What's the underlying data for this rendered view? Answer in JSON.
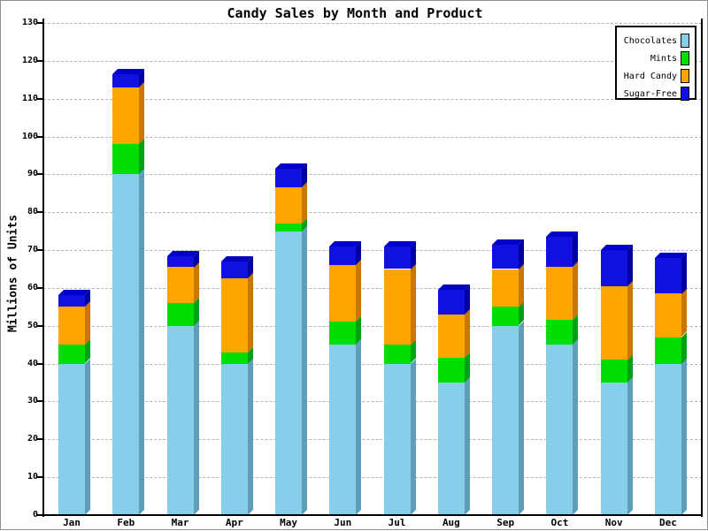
{
  "title": "Candy Sales by Month and Product",
  "y_axis": {
    "label": "Millions of Units"
  },
  "chart_data": {
    "type": "bar",
    "stacked": true,
    "title": "Candy Sales by Month and Product",
    "xlabel": "",
    "ylabel": "Millions of Units",
    "ylim": [
      0,
      130
    ],
    "y_ticks": [
      0,
      10,
      20,
      30,
      40,
      50,
      60,
      70,
      80,
      90,
      100,
      110,
      120,
      130
    ],
    "grid": "dashed horizontal",
    "legend_position": "top-right",
    "categories": [
      "Jan",
      "Feb",
      "Mar",
      "Apr",
      "May",
      "Jun",
      "Jul",
      "Aug",
      "Sep",
      "Oct",
      "Nov",
      "Dec"
    ],
    "series": [
      {
        "name": "Chocolates",
        "color": "#87CEEB",
        "side_color": "#5F9DB9",
        "values": [
          40,
          90,
          50,
          40,
          75,
          45,
          40,
          35,
          50,
          45,
          35,
          40
        ]
      },
      {
        "name": "Mints",
        "color": "#00DE00",
        "side_color": "#00A018",
        "values": [
          5,
          8,
          6,
          3,
          2,
          6,
          5,
          6.5,
          5,
          6.5,
          6,
          7
        ]
      },
      {
        "name": "Hard Candy",
        "color": "#FFA500",
        "side_color": "#C87700",
        "values": [
          10,
          15,
          9.5,
          19.5,
          9.5,
          15,
          20,
          11.5,
          10,
          14,
          19.5,
          11.5
        ]
      },
      {
        "name": "Sugar-Free",
        "color": "#1010E0",
        "side_color": "#0000A0",
        "top_color": "#0000C8",
        "values": [
          3,
          3.5,
          3,
          4.5,
          5,
          5,
          6,
          6.5,
          6.5,
          8,
          9.5,
          9.5
        ]
      }
    ],
    "stack_totals": [
      58,
      116.5,
      68.5,
      67,
      91.5,
      71,
      71,
      59.5,
      71.5,
      73.5,
      70,
      68
    ]
  }
}
